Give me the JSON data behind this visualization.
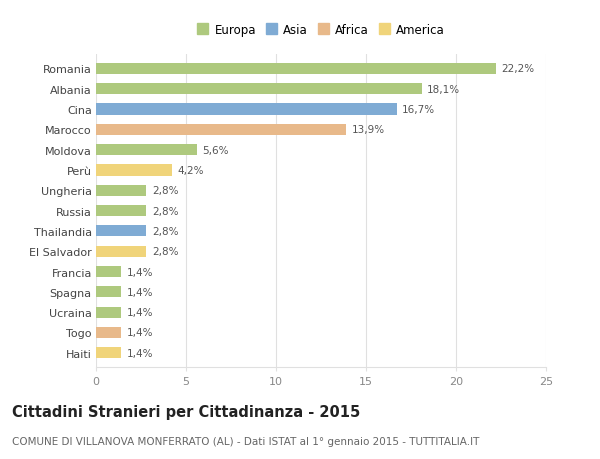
{
  "countries": [
    "Romania",
    "Albania",
    "Cina",
    "Marocco",
    "Moldova",
    "Perù",
    "Ungheria",
    "Russia",
    "Thailandia",
    "El Salvador",
    "Francia",
    "Spagna",
    "Ucraina",
    "Togo",
    "Haiti"
  ],
  "values": [
    22.2,
    18.1,
    16.7,
    13.9,
    5.6,
    4.2,
    2.8,
    2.8,
    2.8,
    2.8,
    1.4,
    1.4,
    1.4,
    1.4,
    1.4
  ],
  "labels": [
    "22,2%",
    "18,1%",
    "16,7%",
    "13,9%",
    "5,6%",
    "4,2%",
    "2,8%",
    "2,8%",
    "2,8%",
    "2,8%",
    "1,4%",
    "1,4%",
    "1,4%",
    "1,4%",
    "1,4%"
  ],
  "continents": [
    "Europa",
    "Europa",
    "Asia",
    "Africa",
    "Europa",
    "America",
    "Europa",
    "Europa",
    "Asia",
    "America",
    "Europa",
    "Europa",
    "Europa",
    "Africa",
    "America"
  ],
  "colors": {
    "Europa": "#aec97e",
    "Asia": "#7fabd4",
    "Africa": "#e8b98a",
    "America": "#f0d47a"
  },
  "legend_order": [
    "Europa",
    "Asia",
    "Africa",
    "America"
  ],
  "title": "Cittadini Stranieri per Cittadinanza - 2015",
  "subtitle": "COMUNE DI VILLANOVA MONFERRATO (AL) - Dati ISTAT al 1° gennaio 2015 - TUTTITALIA.IT",
  "xlim": [
    0,
    25
  ],
  "xticks": [
    0,
    5,
    10,
    15,
    20,
    25
  ],
  "background_color": "#ffffff",
  "grid_color": "#e0e0e0",
  "bar_height": 0.55,
  "title_fontsize": 10.5,
  "subtitle_fontsize": 7.5,
  "label_fontsize": 7.5,
  "tick_fontsize": 8,
  "legend_fontsize": 8.5
}
